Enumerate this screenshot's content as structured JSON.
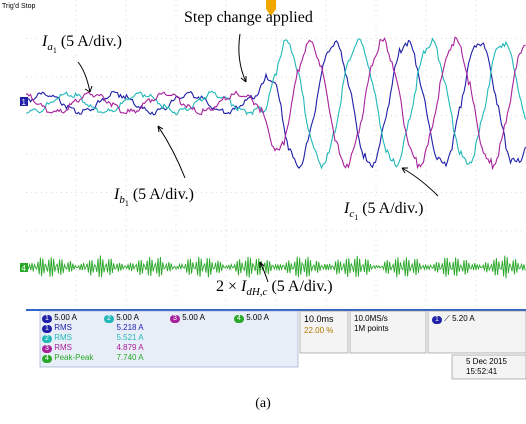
{
  "scope": {
    "status": "Trig'd Stop",
    "colors": {
      "a": "#1f1fa8",
      "b": "#22b8b8",
      "c": "#a8229c",
      "h": "#2aa82a",
      "grid": "#b8b8b8"
    },
    "markers": {
      "ch1": "1",
      "ch4": "4"
    }
  },
  "annotations": {
    "step": "Step change applied",
    "ia": {
      "sym": "I",
      "sub": "a",
      "subsub": "1",
      "scale": "(5 A/div.)"
    },
    "ib": {
      "sym": "I",
      "sub": "b",
      "subsub": "1",
      "scale": "(5 A/div.)"
    },
    "ic": {
      "sym": "I",
      "sub": "c",
      "subsub": "1",
      "scale": "(5 A/div.)"
    },
    "ih": {
      "prefix": "2 ×",
      "sym": "I",
      "sub": "dH,c",
      "scale": "(5 A/div.)"
    }
  },
  "bottom_bar": {
    "channels": [
      {
        "num": "1",
        "scale": "5.00 A",
        "color": "#1f1fa8"
      },
      {
        "num": "2",
        "scale": "5.00 A",
        "color": "#22b8b8"
      },
      {
        "num": "3",
        "scale": "5.00 A",
        "color": "#a8229c"
      },
      {
        "num": "4",
        "scale": "5.00 A",
        "color": "#2aa82a"
      }
    ],
    "measurements": [
      {
        "num": "1",
        "type": "RMS",
        "value": "5.218 A",
        "color": "#1f1fa8"
      },
      {
        "num": "2",
        "type": "RMS",
        "value": "5.521 A",
        "color": "#22b8b8"
      },
      {
        "num": "3",
        "type": "RMS",
        "value": "4.879 A",
        "color": "#a8229c"
      },
      {
        "num": "4",
        "type": "Peak-Peak",
        "value": "7.740 A",
        "color": "#2aa82a"
      }
    ],
    "timebase": "10.0ms",
    "trigger_pos": "22.00 %",
    "sample_rate": "10.0MS/s",
    "record_length": "1M points",
    "trigger_source": "1",
    "trigger_level": "5.20 A",
    "date": "5 Dec 2015",
    "time": "15:52:41"
  },
  "caption": "(a)"
}
